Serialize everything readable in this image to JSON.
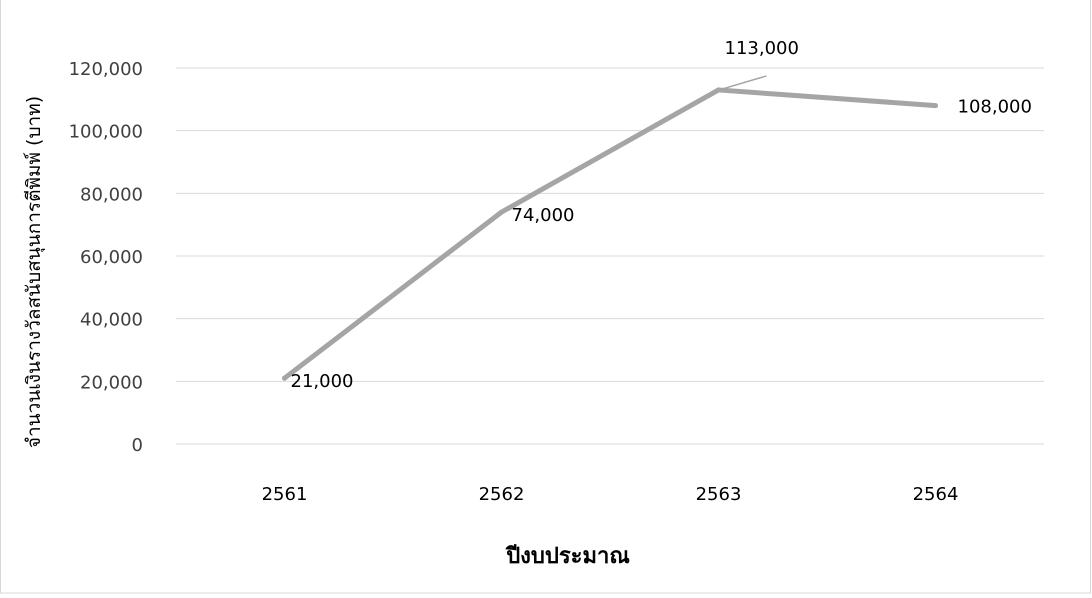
{
  "chart_data": {
    "type": "line",
    "title": "",
    "xlabel": "ปีงบประมาณ",
    "ylabel": "จำนวนเงินรางวัลสนับสนุนการตีพิมพ์ (บาท)",
    "categories": [
      "2561",
      "2562",
      "2563",
      "2564"
    ],
    "series": [
      {
        "values": [
          21000,
          74000,
          113000,
          108000
        ]
      }
    ],
    "data_labels": [
      "21,000",
      "74,000",
      "113,000",
      "108,000"
    ],
    "y_ticks": [
      "0",
      "20,000",
      "40,000",
      "60,000",
      "80,000",
      "100,000",
      "120,000"
    ],
    "ylim": [
      0,
      120000
    ],
    "grid": true,
    "legend": "none",
    "colors": {
      "line": "#a5a5a5",
      "grid": "#d9d9d9",
      "frame": "#d9d9d9"
    }
  }
}
